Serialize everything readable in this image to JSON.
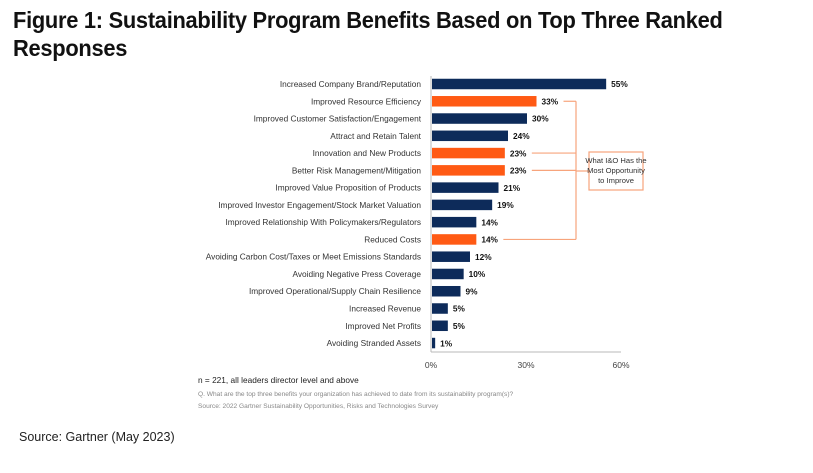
{
  "figure": {
    "title": "Figure 1: Sustainability Program Benefits Based on Top Three Ranked Responses",
    "sample_note": "n = 221, all leaders director level and above",
    "question_note": "Q. What are the top three benefits your organization has achieved to date from its sustainability program(s)?",
    "survey_source": "Source: 2022 Gartner Sustainability Opportunities, Risks and Technologies Survey",
    "page_source": "Source: Gartner (May 2023)"
  },
  "colors": {
    "default_bar": "#0d2b5a",
    "highlight_bar": "#ff5a14",
    "callout_line": "#f7a47c",
    "axis": "#b8b8b8"
  },
  "chart_data": {
    "type": "bar",
    "orientation": "horizontal",
    "title": "Figure 1: Sustainability Program Benefits Based on Top Three Ranked Responses",
    "xlabel": "",
    "ylabel": "",
    "xlim": [
      0,
      60
    ],
    "unit": "%",
    "ticks": [
      "0%",
      "30%",
      "60%"
    ],
    "tick_values": [
      0,
      30,
      60
    ],
    "grid": false,
    "categories": [
      "Increased Company Brand/Reputation",
      "Improved Resource Efficiency",
      "Improved Customer Satisfaction/Engagement",
      "Attract and Retain Talent",
      "Innovation and New Products",
      "Better Risk Management/Mitigation",
      "Improved Value Proposition of Products",
      "Improved Investor Engagement/Stock Market Valuation",
      "Improved Relationship With Policymakers/Regulators",
      "Reduced Costs",
      "Avoiding Carbon Cost/Taxes or Meet Emissions Standards",
      "Avoiding Negative Press Coverage",
      "Improved Operational/Supply Chain Resilience",
      "Increased Revenue",
      "Improved Net Profits",
      "Avoiding Stranded Assets"
    ],
    "values": [
      55,
      33,
      30,
      24,
      23,
      23,
      21,
      19,
      14,
      14,
      12,
      10,
      9,
      5,
      5,
      1
    ],
    "value_labels": [
      "55%",
      "33%",
      "30%",
      "24%",
      "23%",
      "23%",
      "21%",
      "19%",
      "14%",
      "14%",
      "12%",
      "10%",
      "9%",
      "5%",
      "5%",
      "1%"
    ],
    "highlighted": [
      false,
      true,
      false,
      false,
      true,
      true,
      false,
      false,
      false,
      true,
      false,
      false,
      false,
      false,
      false,
      false
    ],
    "annotation": {
      "text_lines": [
        "What I&O Has the",
        "Most Opportunity",
        "to Improve"
      ],
      "applies_to": [
        "Improved Resource Efficiency",
        "Innovation and New Products",
        "Better Risk Management/Mitigation",
        "Reduced Costs"
      ]
    }
  }
}
